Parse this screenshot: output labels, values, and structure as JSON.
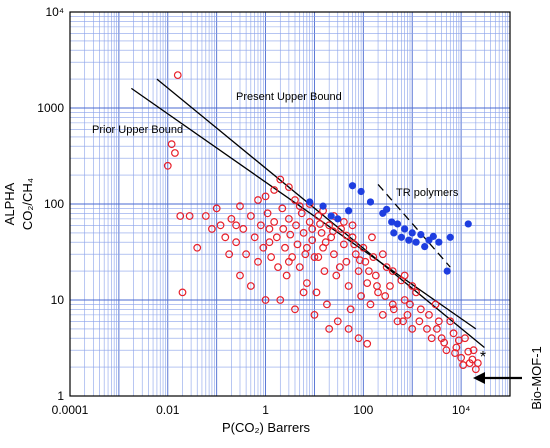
{
  "chart_data": {
    "type": "scatter",
    "xscale": "log",
    "yscale": "log",
    "xlim": [
      0.0001,
      100000
    ],
    "ylim": [
      1,
      10000
    ],
    "xlabel": "P(CO₂) Barrers",
    "ylabel_line1": "ALPHA",
    "ylabel_line2": "CO₂/CH₄",
    "grid": true,
    "x_tick_labels": [
      "0.0001",
      "0.01",
      "1",
      "100",
      "10⁴"
    ],
    "x_tick_values": [
      0.0001,
      0.01,
      1,
      100,
      10000
    ],
    "y_tick_labels": [
      "1",
      "10",
      "100",
      "1000",
      "10⁴"
    ],
    "y_tick_values": [
      1,
      10,
      100,
      1000,
      10000
    ],
    "annotations": {
      "prior_upper_bound": "Prior Upper Bound",
      "present_upper_bound": "Present Upper Bound",
      "tr_polymers": "TR polymers",
      "bio_mof": "Bio-MOF-1"
    },
    "lines": {
      "prior_upper_bound": [
        [
          0.0018,
          1600
        ],
        [
          20000,
          5
        ]
      ],
      "present_upper_bound": [
        [
          0.006,
          2000
        ],
        [
          30000,
          3.2
        ]
      ],
      "tr_polymers_bound": [
        [
          200,
          160
        ],
        [
          6000,
          22
        ]
      ]
    },
    "series": [
      {
        "marker": "open-circle",
        "color": "#e8202a",
        "points": [
          [
            0.016,
            2200
          ],
          [
            0.012,
            420
          ],
          [
            0.014,
            340
          ],
          [
            0.01,
            250
          ],
          [
            0.018,
            75
          ],
          [
            0.028,
            75
          ],
          [
            0.02,
            12
          ],
          [
            0.04,
            35
          ],
          [
            0.06,
            75
          ],
          [
            0.08,
            55
          ],
          [
            0.1,
            90
          ],
          [
            0.12,
            60
          ],
          [
            0.15,
            45
          ],
          [
            0.2,
            70
          ],
          [
            0.25,
            40
          ],
          [
            0.3,
            95
          ],
          [
            0.35,
            55
          ],
          [
            0.4,
            30
          ],
          [
            0.5,
            75
          ],
          [
            0.6,
            45
          ],
          [
            0.7,
            25
          ],
          [
            0.8,
            60
          ],
          [
            0.9,
            35
          ],
          [
            1,
            120
          ],
          [
            1.1,
            80
          ],
          [
            1.2,
            40
          ],
          [
            1.3,
            28
          ],
          [
            1.5,
            65
          ],
          [
            1.7,
            45
          ],
          [
            1.8,
            22
          ],
          [
            2,
            180
          ],
          [
            2.2,
            90
          ],
          [
            2.3,
            55
          ],
          [
            2.5,
            35
          ],
          [
            2.7,
            18
          ],
          [
            3,
            70
          ],
          [
            3.2,
            48
          ],
          [
            3.5,
            28
          ],
          [
            4,
            110
          ],
          [
            4.2,
            60
          ],
          [
            4.5,
            38
          ],
          [
            5,
            22
          ],
          [
            5.5,
            80
          ],
          [
            6,
            50
          ],
          [
            6.5,
            30
          ],
          [
            7,
            15
          ],
          [
            8,
            65
          ],
          [
            9,
            42
          ],
          [
            10,
            28
          ],
          [
            11,
            12
          ],
          [
            12,
            75
          ],
          [
            14,
            50
          ],
          [
            15,
            35
          ],
          [
            16,
            20
          ],
          [
            18,
            9
          ],
          [
            20,
            60
          ],
          [
            22,
            45
          ],
          [
            25,
            30
          ],
          [
            28,
            18
          ],
          [
            30,
            6
          ],
          [
            35,
            55
          ],
          [
            40,
            38
          ],
          [
            45,
            25
          ],
          [
            50,
            14
          ],
          [
            55,
            8
          ],
          [
            60,
            45
          ],
          [
            70,
            30
          ],
          [
            80,
            20
          ],
          [
            90,
            11
          ],
          [
            100,
            35
          ],
          [
            110,
            25
          ],
          [
            120,
            15
          ],
          [
            140,
            9
          ],
          [
            160,
            28
          ],
          [
            180,
            18
          ],
          [
            200,
            12
          ],
          [
            250,
            7
          ],
          [
            300,
            22
          ],
          [
            350,
            14
          ],
          [
            400,
            9
          ],
          [
            500,
            6
          ],
          [
            600,
            16
          ],
          [
            700,
            10
          ],
          [
            800,
            7
          ],
          [
            1000,
            5
          ],
          [
            1200,
            12
          ],
          [
            1500,
            8
          ],
          [
            2000,
            5
          ],
          [
            2500,
            4
          ],
          [
            3000,
            9
          ],
          [
            3500,
            6
          ],
          [
            4000,
            4
          ],
          [
            5000,
            3
          ],
          [
            6000,
            6
          ],
          [
            7000,
            4.5
          ],
          [
            8000,
            3.2
          ],
          [
            10000,
            2.5
          ],
          [
            12000,
            4
          ],
          [
            15000,
            2.2
          ],
          [
            18000,
            3
          ],
          [
            20000,
            1.9
          ],
          [
            1.5,
            140
          ],
          [
            3,
            150
          ],
          [
            0.7,
            110
          ],
          [
            5,
            95
          ],
          [
            8,
            100
          ],
          [
            15,
            85
          ],
          [
            25,
            75
          ],
          [
            40,
            65
          ],
          [
            60,
            60
          ],
          [
            2,
            10
          ],
          [
            4,
            8
          ],
          [
            6,
            12
          ],
          [
            10,
            7
          ],
          [
            20,
            5
          ],
          [
            0.3,
            18
          ],
          [
            0.5,
            14
          ],
          [
            1,
            10
          ],
          [
            150,
            45
          ],
          [
            250,
            30
          ],
          [
            400,
            20
          ],
          [
            700,
            18
          ],
          [
            1000,
            14
          ],
          [
            50,
            5
          ],
          [
            80,
            4
          ],
          [
            120,
            3.5
          ],
          [
            3,
            25
          ],
          [
            7,
            35
          ],
          [
            12,
            28
          ],
          [
            1.2,
            55
          ],
          [
            0.25,
            60
          ],
          [
            0.18,
            30
          ],
          [
            9,
            55
          ],
          [
            13,
            62
          ],
          [
            17,
            40
          ],
          [
            24,
            52
          ],
          [
            33,
            22
          ],
          [
            45,
            47
          ],
          [
            65,
            38
          ],
          [
            85,
            26
          ],
          [
            130,
            20
          ],
          [
            190,
            14
          ],
          [
            280,
            11
          ],
          [
            420,
            8
          ],
          [
            650,
            6
          ],
          [
            900,
            9
          ],
          [
            1400,
            6
          ],
          [
            2200,
            7
          ],
          [
            3200,
            5
          ],
          [
            4500,
            3.6
          ],
          [
            7500,
            2.8
          ],
          [
            9000,
            3.8
          ],
          [
            11000,
            2.1
          ],
          [
            14000,
            2.9
          ],
          [
            17000,
            2.4
          ],
          [
            22000,
            2.2
          ]
        ]
      },
      {
        "marker": "filled-circle",
        "color": "#1e3ee0",
        "points": [
          [
            8,
            105
          ],
          [
            15,
            95
          ],
          [
            22,
            75
          ],
          [
            30,
            70
          ],
          [
            50,
            85
          ],
          [
            60,
            155
          ],
          [
            90,
            135
          ],
          [
            140,
            105
          ],
          [
            250,
            80
          ],
          [
            300,
            88
          ],
          [
            380,
            65
          ],
          [
            420,
            50
          ],
          [
            500,
            62
          ],
          [
            600,
            45
          ],
          [
            700,
            55
          ],
          [
            850,
            42
          ],
          [
            1000,
            50
          ],
          [
            1200,
            40
          ],
          [
            1500,
            48
          ],
          [
            1800,
            36
          ],
          [
            2200,
            42
          ],
          [
            2700,
            46
          ],
          [
            3500,
            40
          ],
          [
            6000,
            45
          ],
          [
            14000,
            62
          ],
          [
            5200,
            20
          ]
        ]
      },
      {
        "marker": "star",
        "color": "#000000",
        "points": [
          [
            28000,
            2.6
          ]
        ]
      }
    ]
  }
}
